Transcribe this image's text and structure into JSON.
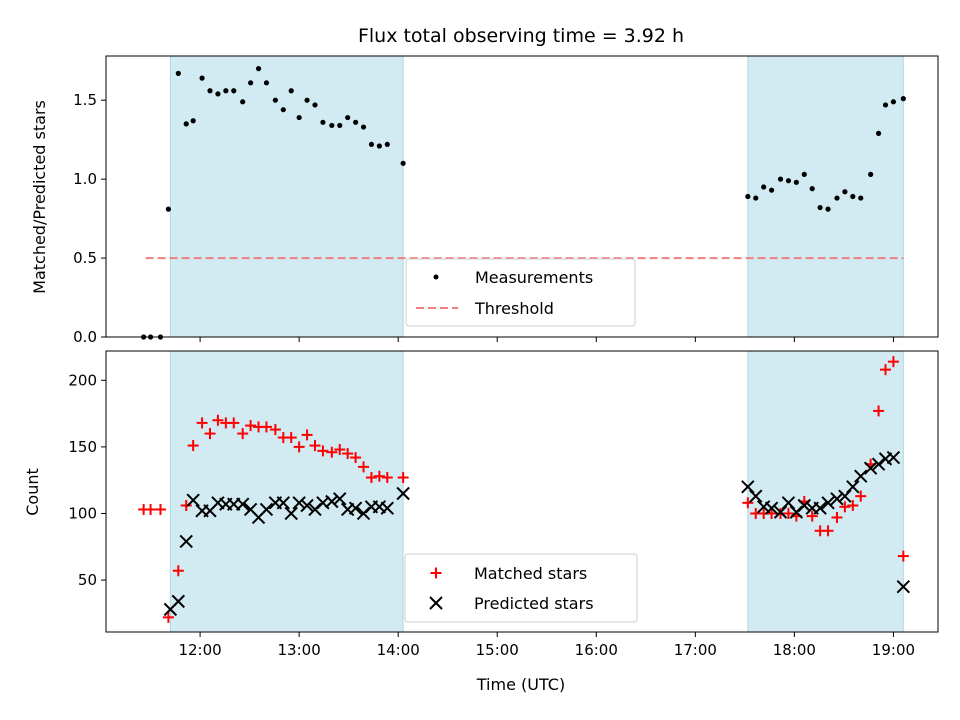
{
  "chart_data": {
    "type": "scatter",
    "title": "Flux total observing time = 3.92 h",
    "xlabel": "Time (UTC)",
    "xlim": [
      11.05,
      19.45
    ],
    "xticks": [
      12,
      13,
      14,
      15,
      16,
      17,
      18,
      19
    ],
    "xtick_labels": [
      "12:00",
      "13:00",
      "14:00",
      "15:00",
      "16:00",
      "17:00",
      "18:00",
      "19:00"
    ],
    "observing_windows": [
      [
        11.7,
        14.05
      ],
      [
        17.53,
        19.1
      ]
    ],
    "window_color": "#add8e6",
    "panels": [
      {
        "ylabel": "Matched/Predicted stars",
        "ylim": [
          0,
          1.78
        ],
        "yticks": [
          0.0,
          0.5,
          1.0,
          1.5
        ],
        "ytick_labels": [
          "0.0",
          "0.5",
          "1.0",
          "1.5"
        ],
        "legend_position": "lower center",
        "series": [
          {
            "name": "Measurements",
            "marker": "dot",
            "color": "#000000",
            "x": [
              11.43,
              11.5,
              11.6,
              11.68,
              11.78,
              11.86,
              11.93,
              12.02,
              12.1,
              12.18,
              12.26,
              12.34,
              12.43,
              12.51,
              12.59,
              12.67,
              12.76,
              12.84,
              12.92,
              13.0,
              13.08,
              13.16,
              13.24,
              13.33,
              13.41,
              13.49,
              13.57,
              13.65,
              13.73,
              13.81,
              13.89,
              14.05,
              17.53,
              17.61,
              17.69,
              17.77,
              17.86,
              17.94,
              18.02,
              18.1,
              18.18,
              18.26,
              18.34,
              18.43,
              18.51,
              18.59,
              18.67,
              18.77,
              18.85,
              18.92,
              19.0,
              19.1
            ],
            "y": [
              0.0,
              0.0,
              0.0,
              0.81,
              1.67,
              1.35,
              1.37,
              1.64,
              1.56,
              1.54,
              1.56,
              1.56,
              1.49,
              1.61,
              1.7,
              1.61,
              1.5,
              1.44,
              1.56,
              1.39,
              1.5,
              1.47,
              1.36,
              1.34,
              1.34,
              1.39,
              1.36,
              1.33,
              1.22,
              1.21,
              1.22,
              1.1,
              0.89,
              0.88,
              0.95,
              0.93,
              1.0,
              0.99,
              0.98,
              1.03,
              0.94,
              0.82,
              0.81,
              0.88,
              0.92,
              0.89,
              0.88,
              1.03,
              1.29,
              1.47,
              1.49,
              1.51
            ]
          },
          {
            "name": "Threshold",
            "marker": "dashed-line",
            "color": "#f08080",
            "x": [
              11.45,
              19.1
            ],
            "y": [
              0.5,
              0.5
            ]
          }
        ]
      },
      {
        "ylabel": "Count",
        "ylim": [
          11,
          222
        ],
        "yticks": [
          50,
          100,
          150,
          200
        ],
        "ytick_labels": [
          "50",
          "100",
          "150",
          "200"
        ],
        "legend_position": "lower center",
        "series": [
          {
            "name": "Matched stars",
            "marker": "plus",
            "color": "#ff0000",
            "x": [
              11.43,
              11.5,
              11.6,
              11.68,
              11.78,
              11.86,
              11.93,
              12.02,
              12.1,
              12.18,
              12.26,
              12.34,
              12.43,
              12.51,
              12.59,
              12.67,
              12.76,
              12.84,
              12.92,
              13.0,
              13.08,
              13.16,
              13.24,
              13.33,
              13.41,
              13.49,
              13.57,
              13.65,
              13.73,
              13.81,
              13.89,
              14.05,
              17.53,
              17.61,
              17.69,
              17.77,
              17.86,
              17.94,
              18.02,
              18.1,
              18.18,
              18.26,
              18.34,
              18.43,
              18.51,
              18.59,
              18.67,
              18.77,
              18.85,
              18.92,
              19.0,
              19.1
            ],
            "y": [
              103,
              103,
              103,
              22,
              57,
              106,
              151,
              168,
              160,
              170,
              168,
              168,
              160,
              166,
              165,
              165,
              163,
              157,
              157,
              150,
              159,
              151,
              147,
              146,
              148,
              145,
              142,
              135,
              127,
              128,
              127,
              127,
              108,
              100,
              100,
              100,
              100,
              100,
              98,
              109,
              98,
              87,
              87,
              97,
              105,
              106,
              113,
              137,
              177,
              208,
              214,
              68
            ]
          },
          {
            "name": "Predicted stars",
            "marker": "x",
            "color": "#000000",
            "x": [
              11.7,
              11.78,
              11.86,
              11.93,
              12.02,
              12.1,
              12.18,
              12.26,
              12.34,
              12.43,
              12.51,
              12.59,
              12.67,
              12.76,
              12.84,
              12.92,
              13.0,
              13.08,
              13.16,
              13.24,
              13.33,
              13.41,
              13.49,
              13.57,
              13.65,
              13.73,
              13.81,
              13.89,
              14.05,
              17.53,
              17.61,
              17.69,
              17.77,
              17.86,
              17.94,
              18.02,
              18.1,
              18.18,
              18.26,
              18.34,
              18.43,
              18.51,
              18.59,
              18.67,
              18.77,
              18.85,
              18.92,
              19.0,
              19.1
            ],
            "y": [
              28,
              34,
              79,
              110,
              102,
              102,
              108,
              107,
              107,
              107,
              103,
              97,
              103,
              108,
              108,
              100,
              108,
              106,
              103,
              108,
              109,
              111,
              103,
              104,
              100,
              105,
              105,
              104,
              115,
              120,
              113,
              105,
              104,
              101,
              108,
              101,
              106,
              104,
              104,
              108,
              111,
              113,
              120,
              128,
              134,
              137,
              141,
              142,
              45
            ]
          }
        ]
      }
    ]
  }
}
